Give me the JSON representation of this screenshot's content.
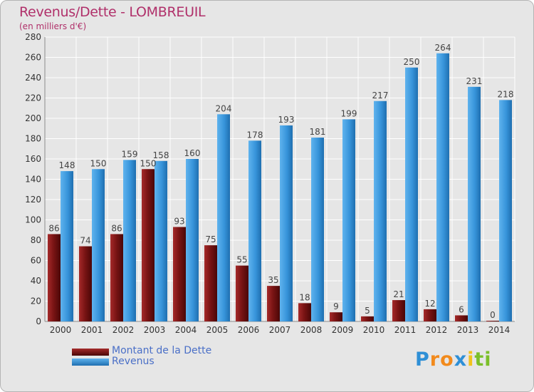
{
  "header": {
    "title": "Revenus/Dette - LOMBREUIL",
    "subtitle": "(en milliers d'€)"
  },
  "chart_data": {
    "type": "bar",
    "categories": [
      "2000",
      "2001",
      "2002",
      "2003",
      "2004",
      "2005",
      "2006",
      "2007",
      "2008",
      "2009",
      "2010",
      "2011",
      "2012",
      "2013",
      "2014"
    ],
    "series": [
      {
        "name": "Montant de la Dette",
        "color": "#8b1a1a",
        "values": [
          86,
          74,
          86,
          150,
          93,
          75,
          55,
          35,
          18,
          9,
          5,
          21,
          12,
          6,
          0
        ]
      },
      {
        "name": "Revenus",
        "color": "#3a97dc",
        "values": [
          148,
          150,
          159,
          158,
          160,
          204,
          178,
          193,
          181,
          199,
          217,
          250,
          264,
          231,
          218
        ]
      }
    ],
    "yticks": [
      0,
      20,
      40,
      60,
      80,
      100,
      120,
      140,
      160,
      180,
      200,
      220,
      240,
      260,
      280
    ],
    "ylim": [
      0,
      280
    ],
    "grid": true,
    "legend_position": "bottom-left"
  },
  "logo": {
    "letters": [
      "P",
      "r",
      "o",
      "x",
      "i",
      "t",
      "i"
    ],
    "colors": [
      "#2e8fd6",
      "#f28a1c",
      "#f28a1c",
      "#2e8fd6",
      "#f2c21c",
      "#7bbf2a",
      "#7bbf2a"
    ]
  }
}
